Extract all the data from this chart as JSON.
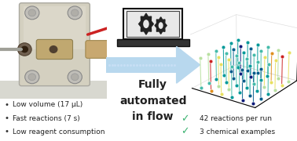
{
  "bg_color": "#ffffff",
  "photo_bg": "#d8d4c8",
  "photo_body_color": "#d0cfc0",
  "photo_bolt_color": "#b0b0a8",
  "photo_tube_color": "#c8a870",
  "arrow_color": "#b8d8ee",
  "arrow_text_lines": [
    "Fully",
    "automated",
    "in flow"
  ],
  "arrow_text_color": "#222222",
  "bullet_points": [
    "Low volume (17 μL)",
    "Fast reactions (7 s)",
    "Low reagent consumption"
  ],
  "check_points": [
    "42 reactions per run",
    "3 chemical examples"
  ],
  "check_color": "#3cb371",
  "bullet_color": "#222222",
  "scatter_grid_color": "#cccccc",
  "laptop_body": "#222222",
  "laptop_screen_bg": "#f5f5f5",
  "laptop_gear_color": "#333333"
}
